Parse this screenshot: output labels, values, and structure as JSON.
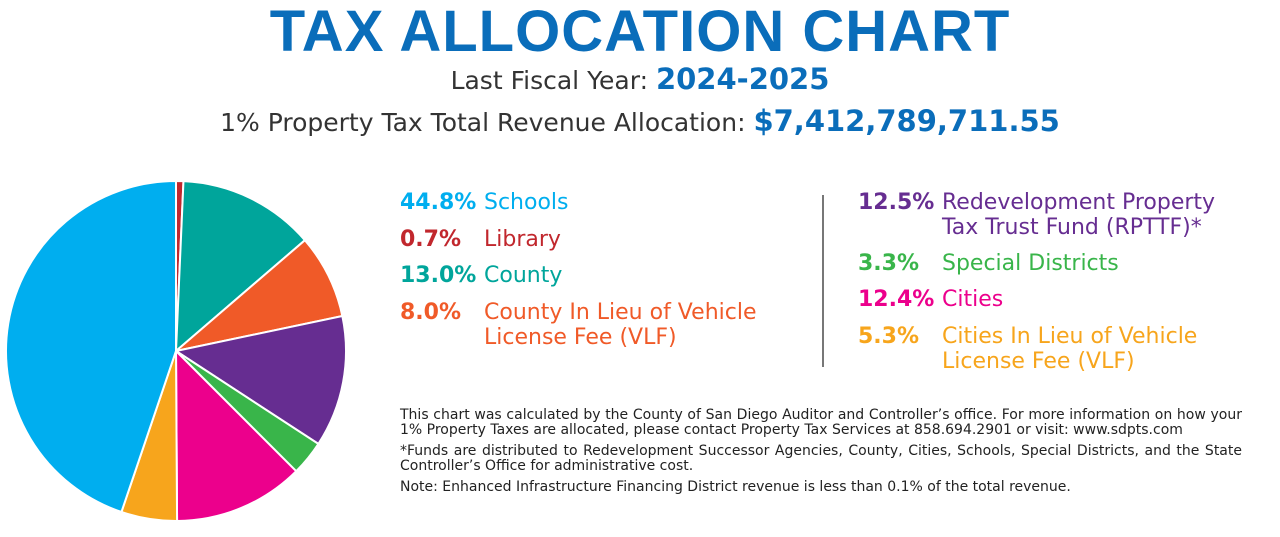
{
  "header": {
    "title": "TAX ALLOCATION CHART",
    "fiscal_label": "Last Fiscal Year:",
    "fiscal_value": "2024-2025",
    "revenue_label": "1% Property Tax Total Revenue Allocation:",
    "revenue_value": "$7,412,789,711.55"
  },
  "chart_data": {
    "type": "pie",
    "start": "top, clockwise",
    "slices": [
      {
        "label": "Library",
        "value": 0.7,
        "pct": "0.7%",
        "color": "#c1272d"
      },
      {
        "label": "County",
        "value": 13.0,
        "pct": "13.0%",
        "color": "#00a59b"
      },
      {
        "label": "County In Lieu of Vehicle License Fee (VLF)",
        "value": 8.0,
        "pct": "8.0%",
        "color": "#f05a28"
      },
      {
        "label": "Redevelopment Property Tax Trust Fund (RPTTF)*",
        "value": 12.5,
        "pct": "12.5%",
        "color": "#662d91"
      },
      {
        "label": "Special Districts",
        "value": 3.3,
        "pct": "3.3%",
        "color": "#39b54a"
      },
      {
        "label": "Cities",
        "value": 12.4,
        "pct": "12.4%",
        "color": "#ec008c"
      },
      {
        "label": "Cities In Lieu of Vehicle License Fee (VLF)",
        "value": 5.3,
        "pct": "5.3%",
        "color": "#f7a51c"
      },
      {
        "label": "Schools",
        "value": 44.8,
        "pct": "44.8%",
        "color": "#00aeef"
      }
    ]
  },
  "legend": {
    "left": [
      {
        "pct": "44.8%",
        "lines": [
          "Schools"
        ],
        "color": "#00aeef"
      },
      {
        "pct": "0.7%",
        "lines": [
          "Library"
        ],
        "color": "#c1272d"
      },
      {
        "pct": "13.0%",
        "lines": [
          "County"
        ],
        "color": "#00a59b"
      },
      {
        "pct": "8.0%",
        "lines": [
          "County In Lieu of Vehicle",
          "License Fee (VLF)"
        ],
        "color": "#f05a28"
      }
    ],
    "right": [
      {
        "pct": "12.5%",
        "lines": [
          "Redevelopment Property",
          "Tax Trust Fund (RPTTF)*"
        ],
        "color": "#662d91"
      },
      {
        "pct": "3.3%",
        "lines": [
          "Special Districts"
        ],
        "color": "#39b54a"
      },
      {
        "pct": "12.4%",
        "lines": [
          "Cities"
        ],
        "color": "#ec008c"
      },
      {
        "pct": "5.3%",
        "lines": [
          "Cities In Lieu of Vehicle",
          "License Fee (VLF)"
        ],
        "color": "#f7a51c"
      }
    ]
  },
  "notes": [
    "This chart was calculated by the County of San Diego Auditor and Controller’s office. For more information on how your 1% Property Taxes are allocated, please contact Property Tax Services at 858.694.2901 or visit: www.sdpts.com",
    "*Funds are distributed to Redevelopment Successor Agencies, County, Cities, Schools, Special Districts, and the State Controller’s Office for administrative cost.",
    "Note: Enhanced Infrastructure Financing District revenue is less than 0.1% of the total revenue."
  ]
}
